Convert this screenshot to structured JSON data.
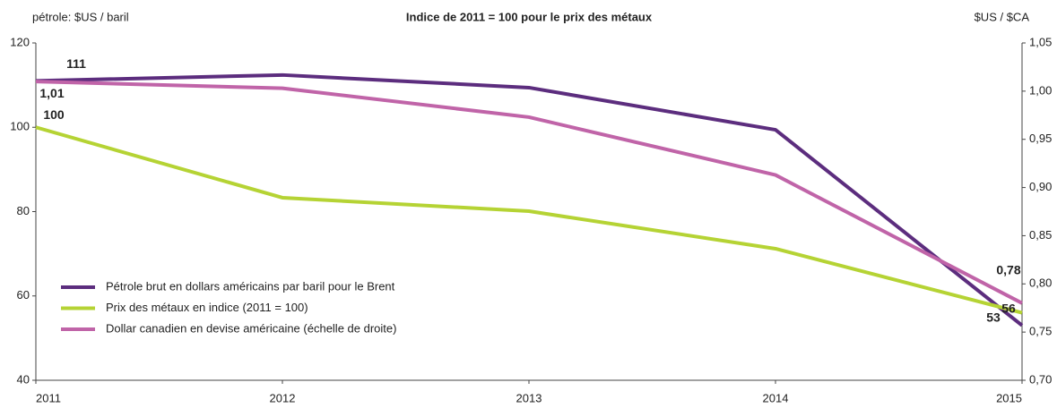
{
  "chart_data": {
    "type": "line",
    "title": "Indice de 2011 = 100 pour le prix des métaux",
    "y_label": "pétrole: $US / baril",
    "y2_label": "$US / $CA",
    "categories": [
      "2011",
      "2012",
      "2013",
      "2014",
      "2015"
    ],
    "ylim": [
      40,
      120
    ],
    "yticks": [
      40,
      60,
      80,
      100,
      120
    ],
    "y2lim": [
      0.7,
      1.05
    ],
    "y2ticks": [
      {
        "value": 0.7,
        "label": "0,70"
      },
      {
        "value": 0.75,
        "label": "0,75"
      },
      {
        "value": 0.8,
        "label": "0,80"
      },
      {
        "value": 0.85,
        "label": "0,85"
      },
      {
        "value": 0.9,
        "label": "0,90"
      },
      {
        "value": 0.95,
        "label": "0,95"
      },
      {
        "value": 1.0,
        "label": "1,00"
      },
      {
        "value": 1.05,
        "label": "1,05"
      }
    ],
    "legend": "lower left",
    "series": [
      {
        "name": "Pétrole brut en dollars américains par baril pour le Brent",
        "color": "#5c2d7e",
        "values": [
          111,
          112.4,
          109.4,
          99.4,
          53
        ],
        "value_labels": [
          "111",
          null,
          null,
          null,
          "53"
        ]
      },
      {
        "name": "Prix des métaux en indice (2011 = 100)",
        "color": "#b5d334",
        "values": [
          100,
          83.3,
          80.1,
          71.2,
          56
        ],
        "value_labels": [
          "100",
          null,
          null,
          null,
          "56"
        ]
      },
      {
        "name": "Dollar canadien en devise américaine (échelle de droite)",
        "color": "#c064a8",
        "axis": "y2",
        "values": [
          1.01,
          1.003,
          0.973,
          0.913,
          0.78
        ],
        "value_labels": [
          "1,01",
          null,
          null,
          null,
          "0,78"
        ]
      }
    ]
  }
}
